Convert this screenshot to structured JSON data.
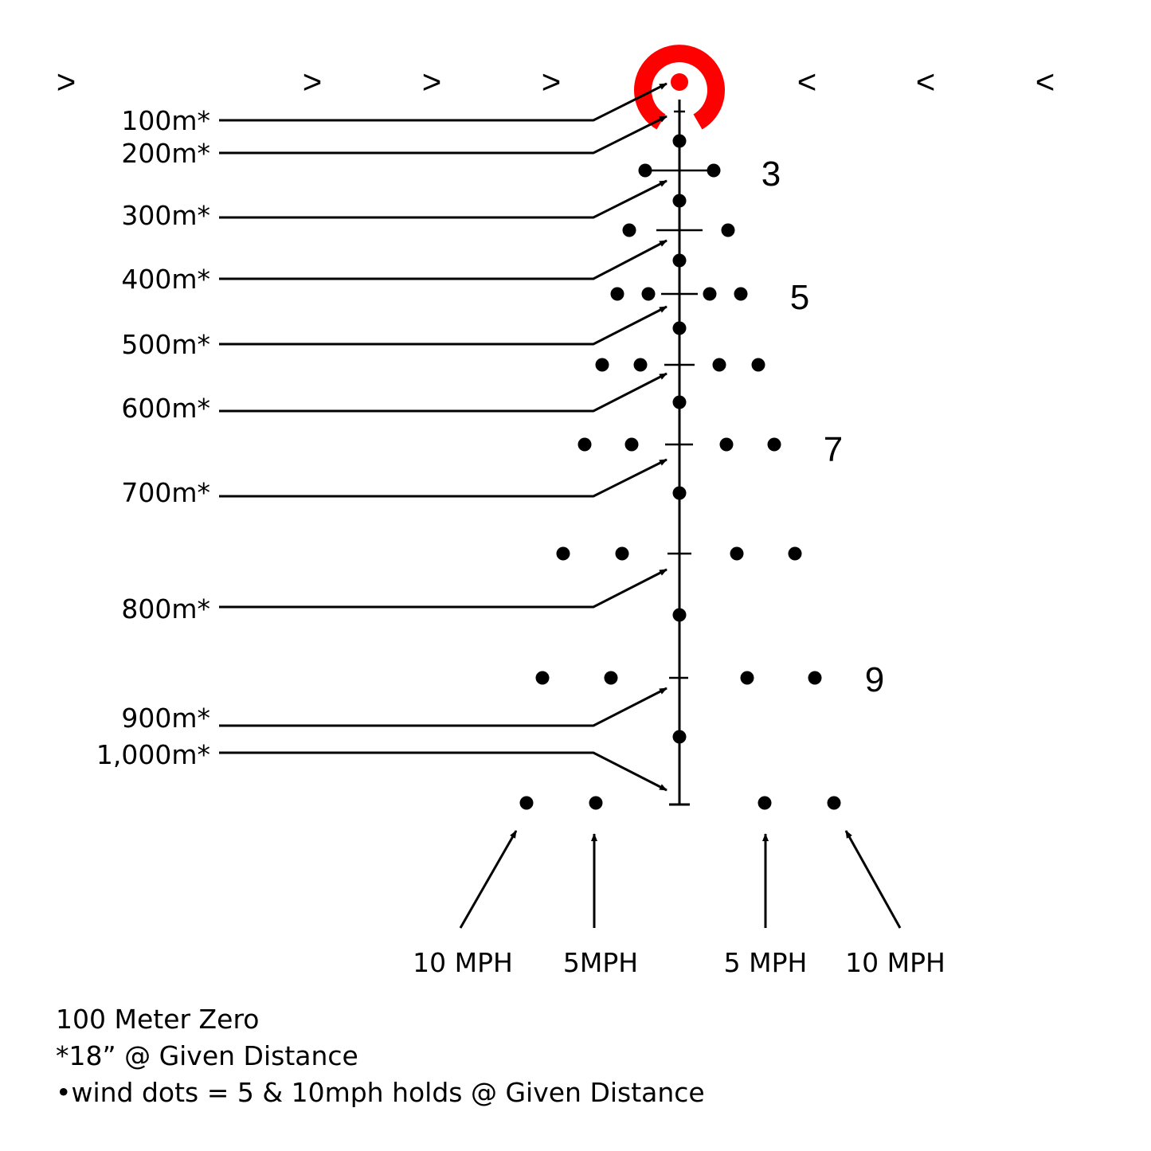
{
  "colors": {
    "aiming_circle": "#ff0000",
    "reticle": "#000000",
    "background": "#ffffff"
  },
  "chevrons": [
    ">",
    ">",
    ">",
    ">",
    "<",
    "<",
    "<"
  ],
  "holdover_numbers": [
    "3",
    "5",
    "7",
    "9"
  ],
  "distance_labels": [
    "100m*",
    "200m*",
    "300m*",
    "400m*",
    "500m*",
    "600m*",
    "700m*",
    "800m*",
    "900m*",
    "1,000m*"
  ],
  "wind_labels": [
    "10 MPH",
    "5MPH",
    "5 MPH",
    "10 MPH"
  ],
  "notes": [
    "100 Meter Zero",
    "*18”  @ Given Distance",
    "•wind dots = 5 & 10mph holds @ Given Distance"
  ]
}
